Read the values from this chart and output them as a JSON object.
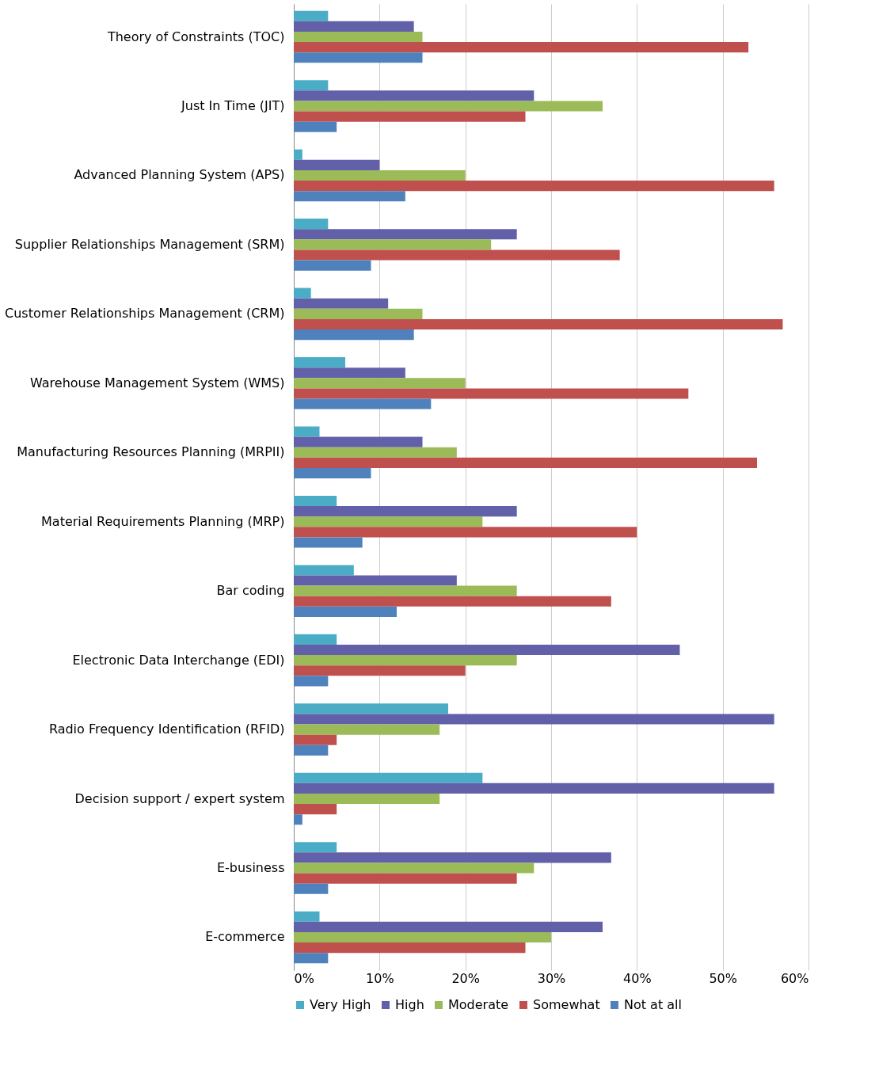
{
  "chart_data": {
    "type": "bar",
    "orientation": "horizontal",
    "categories": [
      "Theory of Constraints (TOC)",
      "Just In Time (JIT)",
      "Advanced Planning System (APS)",
      "Supplier Relationships Management (SRM)",
      "Customer Relationships Management (CRM)",
      "Warehouse Management System (WMS)",
      "Manufacturing Resources Planning (MRPII)",
      "Material Requirements Planning (MRP)",
      "Bar coding",
      "Electronic Data Interchange (EDI)",
      "Radio Frequency Identification (RFID)",
      "Decision support / expert system",
      "E-business",
      "E-commerce"
    ],
    "series": [
      {
        "name": "Very High",
        "color": "#4bacc6",
        "values": [
          4,
          4,
          1,
          4,
          2,
          6,
          3,
          5,
          7,
          5,
          18,
          22,
          5,
          3
        ]
      },
      {
        "name": "High",
        "color": "#6160a8",
        "values": [
          14,
          28,
          10,
          26,
          11,
          13,
          15,
          26,
          19,
          45,
          56,
          56,
          37,
          36
        ]
      },
      {
        "name": "Moderate",
        "color": "#9bbb59",
        "values": [
          15,
          36,
          20,
          23,
          15,
          20,
          19,
          22,
          26,
          26,
          17,
          17,
          28,
          30
        ]
      },
      {
        "name": "Somewhat",
        "color": "#c0504d",
        "values": [
          53,
          27,
          56,
          38,
          57,
          46,
          54,
          40,
          37,
          20,
          5,
          5,
          26,
          27
        ]
      },
      {
        "name": "Not at all",
        "color": "#4f81bd",
        "values": [
          15,
          5,
          13,
          9,
          14,
          16,
          9,
          8,
          12,
          4,
          4,
          1,
          4,
          4
        ]
      }
    ],
    "xlim": [
      0,
      60
    ],
    "xticks": [
      {
        "value": 0,
        "label": "0%"
      },
      {
        "value": 10,
        "label": "10%"
      },
      {
        "value": 20,
        "label": "20%"
      },
      {
        "value": 30,
        "label": "30%"
      },
      {
        "value": 40,
        "label": "40%"
      },
      {
        "value": 50,
        "label": "50%"
      },
      {
        "value": 60,
        "label": "60%"
      }
    ],
    "grid": "x",
    "legend": "bottom"
  }
}
